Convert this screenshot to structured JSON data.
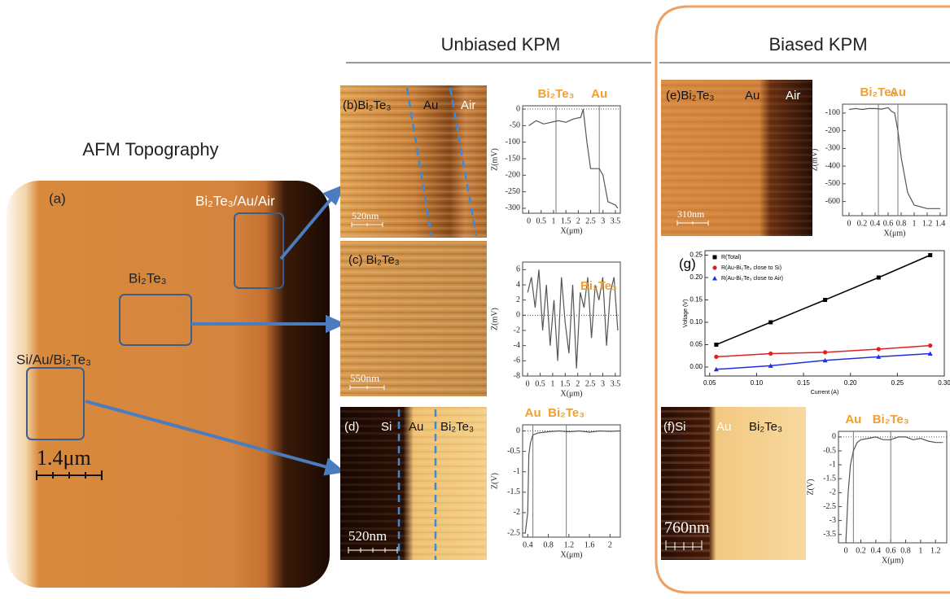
{
  "headings": {
    "unbiased": "Unbiased KPM",
    "biased": "Biased KPM",
    "afm": "AFM Topography"
  },
  "panel_a": {
    "label": "(a)",
    "regions": [
      "Bi₂Te₃/Au/Air",
      "Bi₂Te₃",
      "Si/Au/Bi₂Te₃"
    ],
    "scale": "1.4μm"
  },
  "images": {
    "b": {
      "label": "(b)Bi₂Te₃",
      "regions": [
        "Au",
        "Air"
      ],
      "scale": "520nm"
    },
    "c": {
      "label": "(c)  Bi₂Te₃",
      "scale": "550nm"
    },
    "d": {
      "label": "(d)",
      "regions": [
        "Si",
        "Au",
        "Bi₂Te₃"
      ],
      "scale": "520nm"
    },
    "e": {
      "label": "(e)Bi₂Te₃",
      "regions": [
        "Au",
        "Air"
      ],
      "scale": "310nm"
    },
    "f": {
      "label": "(f)Si",
      "regions": [
        "Au",
        "Bi₂Te₃"
      ],
      "scale": "760nm"
    }
  },
  "profiles": [
    {
      "labels": [
        "Bi₂Te₃",
        "Au"
      ],
      "ylabel": "Z(mV)",
      "xlabel": "X(μm)",
      "xlim": [
        -0.25,
        3.7
      ],
      "ylim": [
        -315,
        10
      ],
      "xticks": [
        0,
        0.5,
        1,
        1.5,
        2,
        2.5,
        3,
        3.5
      ],
      "yticks": [
        0,
        -50,
        -100,
        -150,
        -200,
        -250,
        -300
      ],
      "x": [
        0,
        0.3,
        0.6,
        0.9,
        1.2,
        1.5,
        1.8,
        2.1,
        2.2,
        2.35,
        2.5,
        2.7,
        2.85,
        3.0,
        3.2,
        3.5,
        3.6
      ],
      "y": [
        -50,
        -35,
        -45,
        -40,
        -35,
        -40,
        -30,
        -25,
        0,
        -100,
        -180,
        -180,
        -180,
        -200,
        -280,
        -290,
        -300
      ],
      "markers": [
        1.1,
        2.85
      ]
    },
    {
      "labels": [
        "Bi₂Te₃"
      ],
      "ylabel": "Z(mV)",
      "xlabel": "X(μm)",
      "xlim": [
        -0.2,
        3.7
      ],
      "ylim": [
        -8,
        7
      ],
      "xticks": [
        0,
        0.5,
        1,
        1.5,
        2,
        2.5,
        3,
        3.5
      ],
      "yticks": [
        6,
        4,
        2,
        0,
        -2,
        -4,
        -6,
        -8
      ],
      "x": [
        0,
        0.15,
        0.3,
        0.45,
        0.6,
        0.75,
        0.9,
        1.05,
        1.2,
        1.35,
        1.5,
        1.65,
        1.8,
        1.95,
        2.1,
        2.25,
        2.4,
        2.55,
        2.7,
        2.85,
        3.0,
        3.15,
        3.3,
        3.45,
        3.6
      ],
      "y": [
        3,
        5,
        1,
        6,
        -2,
        4,
        -4,
        2,
        -6,
        5,
        -1,
        -5,
        4,
        -7,
        3,
        1,
        5,
        -3,
        4,
        2,
        5,
        -4,
        3,
        5,
        -2
      ],
      "markers": []
    },
    {
      "labels": [
        "Au",
        "Bi₂Te₃"
      ],
      "ylabel": "Z(V)",
      "xlabel": "X(μm)",
      "xlim": [
        0.3,
        2.2
      ],
      "ylim": [
        -2.6,
        0.15
      ],
      "xticks": [
        0.4,
        0.8,
        1.2,
        1.6,
        2
      ],
      "yticks": [
        0,
        -0.5,
        -1,
        -1.5,
        -2,
        -2.5
      ],
      "x": [
        0.35,
        0.4,
        0.42,
        0.45,
        0.5,
        0.6,
        0.8,
        1.0,
        1.2,
        1.4,
        1.6,
        1.8,
        2.0,
        2.2
      ],
      "y": [
        -2.5,
        -2,
        -0.6,
        -0.3,
        -0.1,
        -0.05,
        -0.02,
        0,
        -0.02,
        0,
        -0.03,
        0,
        -0.01,
        0
      ],
      "markers": [
        0.5,
        1.15
      ]
    },
    {
      "labels": [
        "Bi₂Te₃",
        "Au"
      ],
      "ylabel": "Z(mV)",
      "xlabel": "X(μm)",
      "xlim": [
        -0.1,
        1.5
      ],
      "ylim": [
        -680,
        -50
      ],
      "xticks": [
        0,
        0.2,
        0.4,
        0.6,
        0.8,
        1,
        1.2,
        1.4
      ],
      "yticks": [
        -100,
        -200,
        -300,
        -400,
        -500,
        -600
      ],
      "x": [
        0,
        0.1,
        0.2,
        0.3,
        0.4,
        0.5,
        0.6,
        0.65,
        0.7,
        0.75,
        0.8,
        0.9,
        1.0,
        1.2,
        1.4
      ],
      "y": [
        -80,
        -75,
        -80,
        -75,
        -75,
        -78,
        -70,
        -90,
        -100,
        -200,
        -350,
        -550,
        -620,
        -640,
        -640
      ],
      "markers": [
        0.45,
        0.75
      ]
    },
    {
      "labels": [
        "Au",
        "Bi₂Te₃"
      ],
      "ylabel": "Z(V)",
      "xlabel": "X(μm)",
      "xlim": [
        -0.1,
        1.35
      ],
      "ylim": [
        -3.8,
        0.2
      ],
      "xticks": [
        0,
        0.2,
        0.4,
        0.6,
        0.8,
        1,
        1.2
      ],
      "yticks": [
        0,
        -0.5,
        -1,
        -1.5,
        -2,
        -2.5,
        -3,
        -3.5
      ],
      "x": [
        0,
        0.03,
        0.06,
        0.1,
        0.15,
        0.2,
        0.3,
        0.4,
        0.5,
        0.6,
        0.7,
        0.8,
        0.9,
        1.0,
        1.1,
        1.2,
        1.3
      ],
      "y": [
        -3.7,
        -2,
        -1,
        -0.5,
        -0.2,
        -0.1,
        -0.05,
        0,
        -0.1,
        -0.1,
        0,
        0,
        -0.1,
        -0.05,
        -0.15,
        -0.2,
        -0.2
      ],
      "markers": [
        0.1,
        0.6
      ]
    }
  ],
  "chart_g": {
    "type": "line",
    "label": "(g)",
    "xlabel": "Current (A)",
    "ylabel": "Voltage (V)",
    "xlim": [
      0.045,
      0.3
    ],
    "ylim": [
      -0.02,
      0.26
    ],
    "xticks": [
      0.05,
      {
        "value": 0.1,
        "label": "0.10"
      },
      0.15,
      {
        "value": 0.2,
        "label": "0.20"
      },
      0.25,
      {
        "value": 0.3,
        "label": "0.30"
      }
    ],
    "yticks": [
      {
        "value": 0,
        "label": "0.00"
      },
      0.05,
      {
        "value": 0.1,
        "label": "0.10"
      },
      0.15,
      {
        "value": 0.2,
        "label": "0.20"
      },
      0.25
    ],
    "x": [
      0.057,
      0.115,
      0.173,
      0.23,
      0.285
    ],
    "series": [
      {
        "name": "R(Total)",
        "color": "#000000",
        "marker": "square",
        "values": [
          0.05,
          0.1,
          0.15,
          0.2,
          0.25
        ]
      },
      {
        "name": "R(Au-Bi₂Te₃ close to Si)",
        "color": "#e02020",
        "marker": "circle",
        "values": [
          0.023,
          0.03,
          0.033,
          0.04,
          0.048
        ]
      },
      {
        "name": "R(Au-Bi₂Te₃ close to Air)",
        "color": "#2030e0",
        "marker": "triangle",
        "values": [
          -0.005,
          0.003,
          0.015,
          0.023,
          0.03
        ]
      }
    ]
  }
}
